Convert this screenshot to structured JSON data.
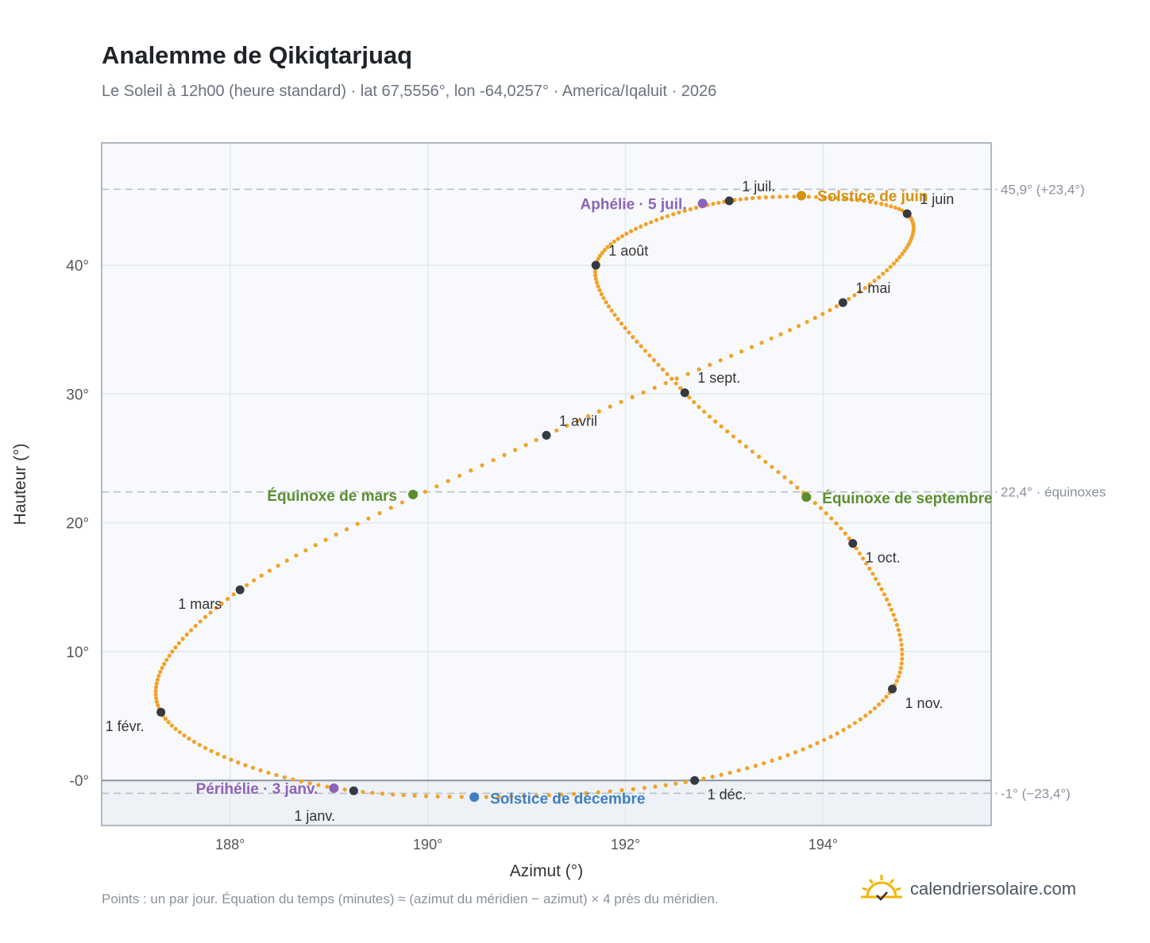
{
  "header": {
    "title": "Analemme de Qikiqtarjuaq",
    "subtitle": "Le Soleil à 12h00 (heure standard) · lat 67,5556°, lon -64,0257° · America/Iqaluit · 2026"
  },
  "footer": {
    "note": "Points : un par jour. Équation du temps (minutes) ≈ (azimut du méridien − azimut) × 4 près du méridien.",
    "brand": "calendriersolaire.com"
  },
  "colors": {
    "curve": "#f2a227",
    "month_marker": "#343a40",
    "solstice_june": "#d4920e",
    "solstice_december": "#3d7fc1",
    "equinox": "#5b8f2e",
    "apsis": "#8e63b5",
    "plot_bg": "#f7f9fc",
    "below_horizon_bg": "#eef2f6"
  },
  "chart_data": {
    "type": "scatter",
    "xlabel": "Azimut (°)",
    "ylabel": "Hauteur (°)",
    "xlim": [
      186.7,
      195.7
    ],
    "ylim": [
      -3.5,
      49.5
    ],
    "x_ticks": [
      {
        "value": 188,
        "label": "188°"
      },
      {
        "value": 190,
        "label": "190°"
      },
      {
        "value": 192,
        "label": "192°"
      },
      {
        "value": 194,
        "label": "194°"
      }
    ],
    "y_ticks": [
      {
        "value": 0,
        "label": "-0°"
      },
      {
        "value": 10,
        "label": "10°"
      },
      {
        "value": 20,
        "label": "20°"
      },
      {
        "value": 30,
        "label": "30°"
      },
      {
        "value": 40,
        "label": "40°"
      }
    ],
    "grid": true,
    "reference_lines": [
      {
        "y": 45.9,
        "label": "45,9° (+23,4°)"
      },
      {
        "y": 22.4,
        "label": "22,4° · équinoxes"
      },
      {
        "y": -1.0,
        "label": "-1° (−23,4°)"
      }
    ],
    "horizon": 0,
    "month_markers": [
      {
        "date": "1 janv.",
        "x": 189.25,
        "y": -0.8
      },
      {
        "date": "1 févr.",
        "x": 187.3,
        "y": 5.3
      },
      {
        "date": "1 mars",
        "x": 188.1,
        "y": 14.8
      },
      {
        "date": "1 avril",
        "x": 191.2,
        "y": 26.8
      },
      {
        "date": "1 mai",
        "x": 194.2,
        "y": 37.1
      },
      {
        "date": "1 juin",
        "x": 194.85,
        "y": 44.0
      },
      {
        "date": "1 juil.",
        "x": 193.05,
        "y": 45.0
      },
      {
        "date": "1 août",
        "x": 191.7,
        "y": 40.0
      },
      {
        "date": "1 sept.",
        "x": 192.6,
        "y": 30.1
      },
      {
        "date": "1 oct.",
        "x": 194.3,
        "y": 18.4
      },
      {
        "date": "1 nov.",
        "x": 194.7,
        "y": 7.1
      },
      {
        "date": "1 déc.",
        "x": 192.7,
        "y": 0.0
      }
    ],
    "events": [
      {
        "label": "Solstice de juin",
        "x": 193.78,
        "y": 45.4,
        "kind": "solstice_june"
      },
      {
        "label": "Solstice de décembre",
        "x": 190.47,
        "y": -1.3,
        "kind": "solstice_december"
      },
      {
        "label": "Équinoxe de mars",
        "x": 189.85,
        "y": 22.2,
        "kind": "equinox"
      },
      {
        "label": "Équinoxe de septembre",
        "x": 193.83,
        "y": 22.0,
        "kind": "equinox"
      },
      {
        "label": "Aphélie · 5 juil.",
        "x": 192.78,
        "y": 44.8,
        "kind": "apsis"
      },
      {
        "label": "Périhélie · 3 janv.",
        "x": 189.05,
        "y": -0.6,
        "kind": "apsis"
      }
    ]
  }
}
